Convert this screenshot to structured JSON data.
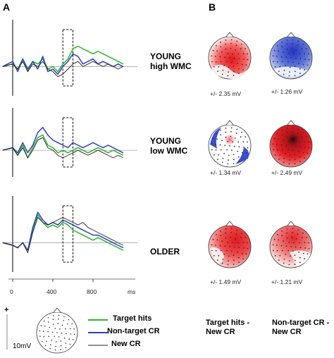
{
  "panels": {
    "a": "A",
    "b": "B"
  },
  "groups": [
    {
      "label_line1": "YOUNG",
      "label_line2": "high WMC",
      "target_map": "+/- 2.35 mV",
      "nontarget_map": "+/- 1.26 mV"
    },
    {
      "label_line1": "YOUNG",
      "label_line2": "low WMC",
      "target_map": "+/- 1.34 mV",
      "nontarget_map": "+/- 2.49 mV"
    },
    {
      "label_line1": "OLDER",
      "label_line2": "",
      "target_map": "+/- 1.49 mV",
      "nontarget_map": "+/- 1.21 mV"
    }
  ],
  "axis": {
    "ticks": [
      "0",
      "400",
      "800"
    ],
    "unit": "ms"
  },
  "scale": {
    "plus": "+",
    "value": "10mV"
  },
  "legend": [
    {
      "label": "Target hits",
      "color": "#2db52d"
    },
    {
      "label": "Non-target CR",
      "color": "#2f3fbf"
    },
    {
      "label": "New CR",
      "color": "#222222"
    }
  ],
  "columns": {
    "left_line1": "Target hits -",
    "left_line2": "New CR",
    "right_line1": "Non-target CR -",
    "right_line2": "New CR"
  },
  "chart_data": [
    {
      "type": "line",
      "group": "YOUNG high WMC",
      "x": [
        -100,
        0,
        50,
        100,
        150,
        200,
        250,
        300,
        350,
        400,
        450,
        500,
        550,
        600,
        650,
        700,
        750,
        800,
        850,
        900,
        950,
        1000,
        1050,
        1100
      ],
      "series": [
        {
          "name": "Target hits",
          "values": [
            0,
            1,
            -1,
            3,
            -2,
            2,
            1,
            3,
            -1,
            0,
            -2,
            1,
            3,
            7,
            8,
            7,
            6,
            5,
            6,
            5,
            4,
            3,
            2,
            1
          ]
        },
        {
          "name": "Non-target CR",
          "values": [
            0,
            2,
            -2,
            3,
            -1,
            2,
            -1,
            4,
            -2,
            -1,
            -3,
            0,
            2,
            5,
            4,
            1,
            2,
            3,
            1,
            2,
            1,
            0,
            1,
            0
          ]
        },
        {
          "name": "New CR",
          "values": [
            0,
            1,
            -1,
            2,
            -2,
            1,
            0,
            2,
            -1,
            -2,
            -4,
            -3,
            -1,
            1,
            2,
            0,
            1,
            2,
            1,
            0,
            1,
            0,
            -1,
            0
          ]
        }
      ]
    },
    {
      "type": "line",
      "group": "YOUNG low WMC",
      "x": [
        -100,
        0,
        50,
        100,
        150,
        200,
        250,
        300,
        350,
        400,
        450,
        500,
        550,
        600,
        650,
        700,
        750,
        800,
        850,
        900,
        950,
        1000,
        1050,
        1100
      ],
      "series": [
        {
          "name": "Target hits",
          "values": [
            0,
            1,
            -2,
            2,
            -3,
            1,
            5,
            6,
            2,
            1,
            -1,
            0,
            -1,
            0,
            1,
            0,
            -1,
            0,
            1,
            0,
            -1,
            0,
            -1,
            -2
          ]
        },
        {
          "name": "Non-target CR",
          "values": [
            0,
            1,
            -1,
            3,
            -1,
            2,
            7,
            9,
            6,
            4,
            3,
            2,
            1,
            3,
            2,
            1,
            2,
            3,
            2,
            1,
            2,
            1,
            0,
            -1
          ]
        },
        {
          "name": "New CR",
          "values": [
            0,
            1,
            -2,
            1,
            -3,
            0,
            4,
            5,
            1,
            0,
            -2,
            -3,
            -2,
            -1,
            0,
            -1,
            -2,
            -1,
            0,
            -1,
            -2,
            -3,
            -2,
            -3
          ]
        }
      ]
    },
    {
      "type": "line",
      "group": "OLDER",
      "x": [
        -100,
        0,
        50,
        100,
        150,
        200,
        250,
        300,
        350,
        400,
        450,
        500,
        550,
        600,
        650,
        700,
        750,
        800,
        850,
        900,
        950,
        1000,
        1050,
        1100
      ],
      "series": [
        {
          "name": "Target hits",
          "values": [
            0,
            -1,
            -2,
            0,
            -3,
            5,
            11,
            8,
            6,
            7,
            6,
            8,
            7,
            5,
            4,
            3,
            2,
            1,
            2,
            1,
            0,
            -1,
            -2,
            -3
          ]
        },
        {
          "name": "Non-target CR",
          "values": [
            0,
            -1,
            -2,
            0,
            -3,
            6,
            12,
            9,
            7,
            8,
            7,
            9,
            8,
            7,
            6,
            5,
            4,
            3,
            3,
            2,
            1,
            0,
            -1,
            -2
          ]
        },
        {
          "name": "New CR",
          "values": [
            0,
            -1,
            -2,
            0,
            -4,
            4,
            10,
            8,
            7,
            8,
            9,
            10,
            9,
            8,
            7,
            8,
            6,
            5,
            4,
            3,
            2,
            1,
            0,
            -1
          ]
        }
      ]
    }
  ]
}
